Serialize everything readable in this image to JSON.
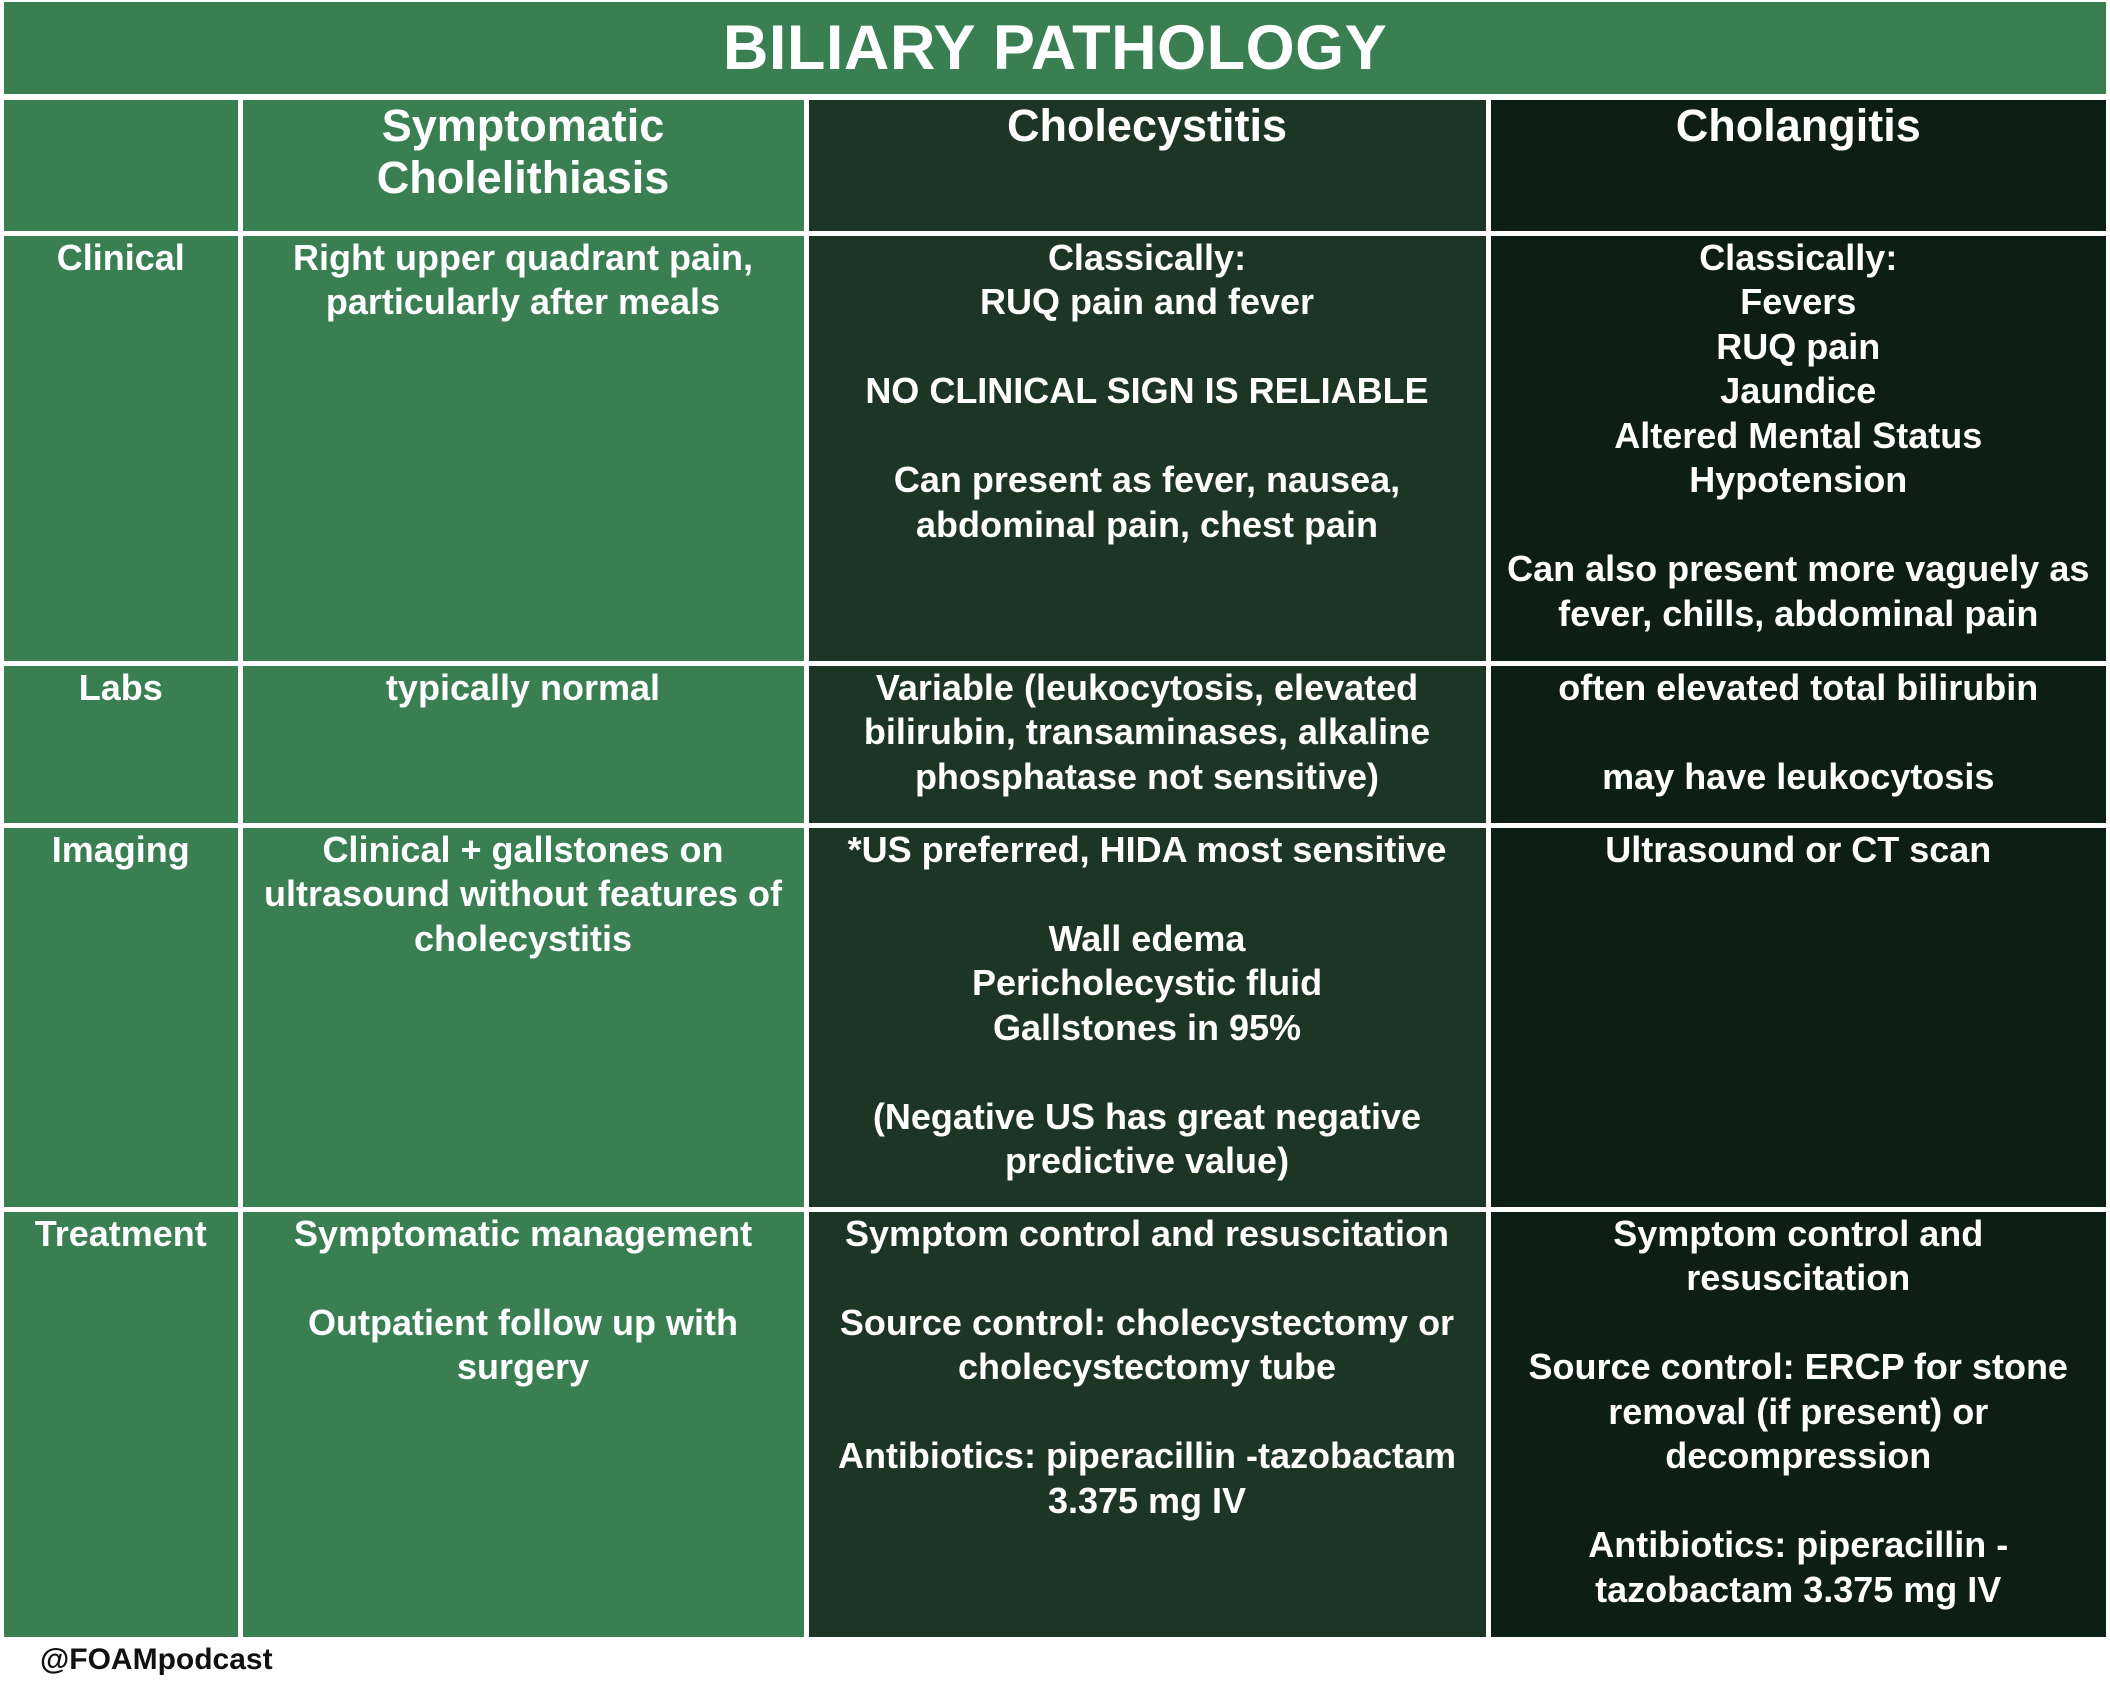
{
  "title": "BILIARY PATHOLOGY",
  "columns": [
    "",
    "Symptomatic\nCholelithiasis",
    "Cholecystitis",
    "Cholangitis"
  ],
  "rows": [
    {
      "label": "Clinical",
      "cells": [
        "Right upper quadrant pain,\nparticularly after meals",
        "Classically:\nRUQ pain and fever\n\nNO CLINICAL SIGN IS RELIABLE\n\nCan present as fever, nausea,\nabdominal pain, chest pain",
        "Classically:\nFevers\nRUQ pain\nJaundice\nAltered Mental Status\nHypotension\n\nCan also present more vaguely as\nfever, chills, abdominal pain"
      ]
    },
    {
      "label": "Labs",
      "cells": [
        "typically normal",
        "Variable (leukocytosis, elevated\nbilirubin, transaminases, alkaline\nphosphatase not sensitive)",
        "often elevated total bilirubin\n\nmay have leukocytosis"
      ]
    },
    {
      "label": "Imaging",
      "cells": [
        "Clinical + gallstones on\nultrasound without features of\ncholecystitis",
        "*US preferred, HIDA most sensitive\n\nWall edema\nPericholecystic fluid\nGallstones in 95%\n\n(Negative US has great negative\npredictive value)",
        "Ultrasound or CT scan"
      ]
    },
    {
      "label": "Treatment",
      "cells": [
        "Symptomatic management\n\nOutpatient follow up with\nsurgery",
        "Symptom control and resuscitation\n\nSource control: cholecystectomy or\ncholecystectomy tube\n\nAntibiotics: piperacillin -tazobactam\n3.375 mg IV",
        "Symptom control and\nresuscitation\n\nSource control: ERCP for stone\nremoval (if present)  or\ndecompression\n\nAntibiotics: piperacillin -\ntazobactam 3.375 mg IV"
      ]
    }
  ],
  "footer": "@FOAMpodcast",
  "colors": {
    "green": "#3a7f52",
    "dark_green": "#1c3525",
    "darkest_green": "#0d1f14",
    "border": "#ffffff",
    "text": "#ffffff"
  }
}
